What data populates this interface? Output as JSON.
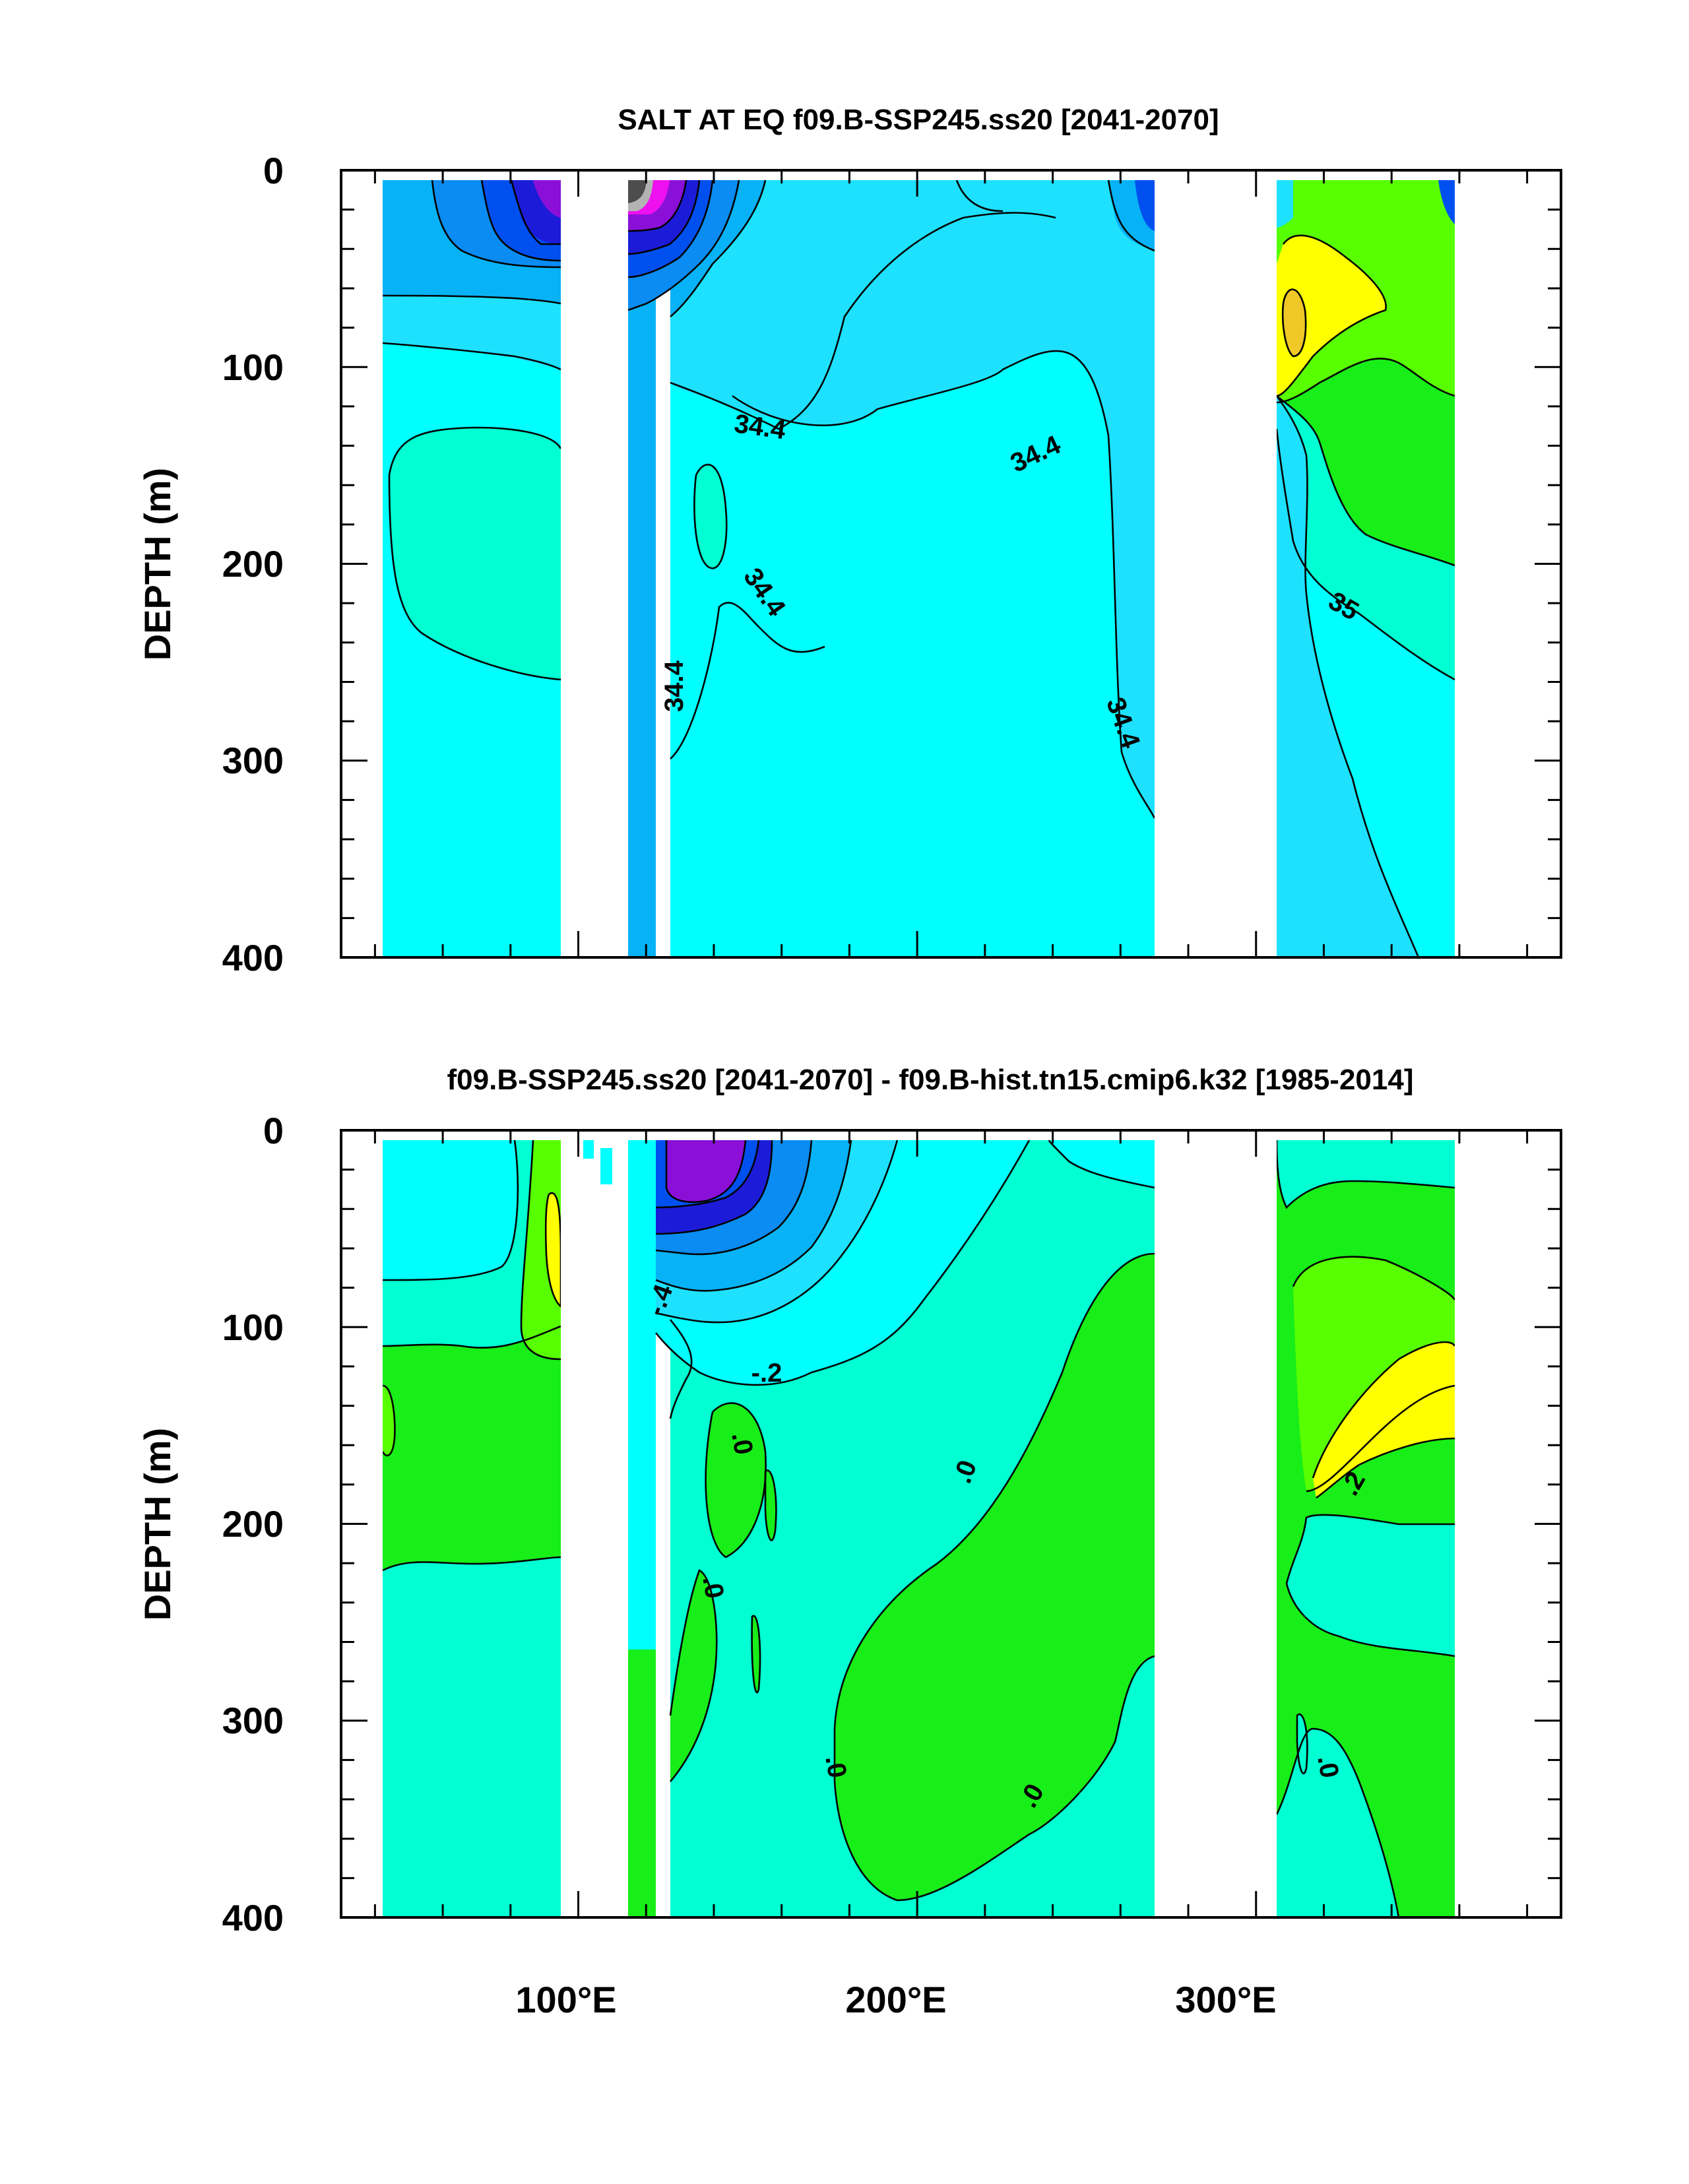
{
  "chart_data": [
    {
      "type": "heatmap",
      "title": "SALT AT EQ f09.B-SSP245.ss20 [2041-2070]",
      "ylabel": "DEPTH (m)",
      "xlabel": "",
      "y_ticks": [
        "0",
        "100",
        "200",
        "300",
        "400"
      ],
      "x_tick_labels": [],
      "xlim": [
        30,
        390
      ],
      "ylim": [
        400,
        0
      ],
      "y_reversed": true,
      "grid": false,
      "legend": "none",
      "contour_labels": [
        {
          "text": "34.4",
          "lon": 161,
          "depth": 128
        },
        {
          "text": "34.4",
          "lon": 246,
          "depth": 143
        },
        {
          "text": "34.4",
          "lon": 157,
          "depth": 222
        },
        {
          "text": "34.4",
          "lon": 133,
          "depth": 265
        },
        {
          "text": "34.4",
          "lon": 269,
          "depth": 273
        },
        {
          "text": "35",
          "lon": 334,
          "depth": 235
        }
      ]
    },
    {
      "type": "heatmap",
      "title": "f09.B-SSP245.ss20 [2041-2070] - f09.B-hist.tn15.cmip6.k32 [1985-2014]",
      "ylabel": "DEPTH (m)",
      "xlabel": "",
      "y_ticks": [
        "0",
        "100",
        "200",
        "300",
        "400"
      ],
      "x_tick_labels": [
        "100°E",
        "200°E",
        "300°E"
      ],
      "xlim": [
        30,
        390
      ],
      "ylim": [
        400,
        0
      ],
      "y_reversed": true,
      "grid": false,
      "legend": "none",
      "contour_labels": [
        {
          "text": "-.4",
          "lon": 129,
          "depth": 88
        },
        {
          "text": "-.2",
          "lon": 161,
          "depth": 124
        },
        {
          "text": ".0",
          "lon": 151,
          "depth": 160
        },
        {
          "text": ".0",
          "lon": 223,
          "depth": 175
        },
        {
          "text": ".0",
          "lon": 132,
          "depth": 240
        },
        {
          "text": ".0",
          "lon": 181,
          "depth": 324
        },
        {
          "text": ".0",
          "lon": 241,
          "depth": 345
        },
        {
          "text": ".2",
          "lon": 343,
          "depth": 178
        },
        {
          "text": ".0",
          "lon": 327,
          "depth": 323
        }
      ]
    }
  ],
  "colors": {
    "white": "#ffffff",
    "gray_dark": "#4d4d4d",
    "gray_light": "#b3b3b3",
    "purple": "#8a10d8",
    "magenta": "#ee10ee",
    "navy": "#1c1cd8",
    "blue": "#0050f0",
    "mid_blue": "#0a8cf2",
    "sky": "#08b2f6",
    "light_sky": "#1ee1ff",
    "cyan": "#00ffff",
    "aquamarine": "#00ffd2",
    "green": "#18ee18",
    "lime": "#58ff00",
    "yellow": "#ffff00",
    "gold": "#f0c828"
  }
}
